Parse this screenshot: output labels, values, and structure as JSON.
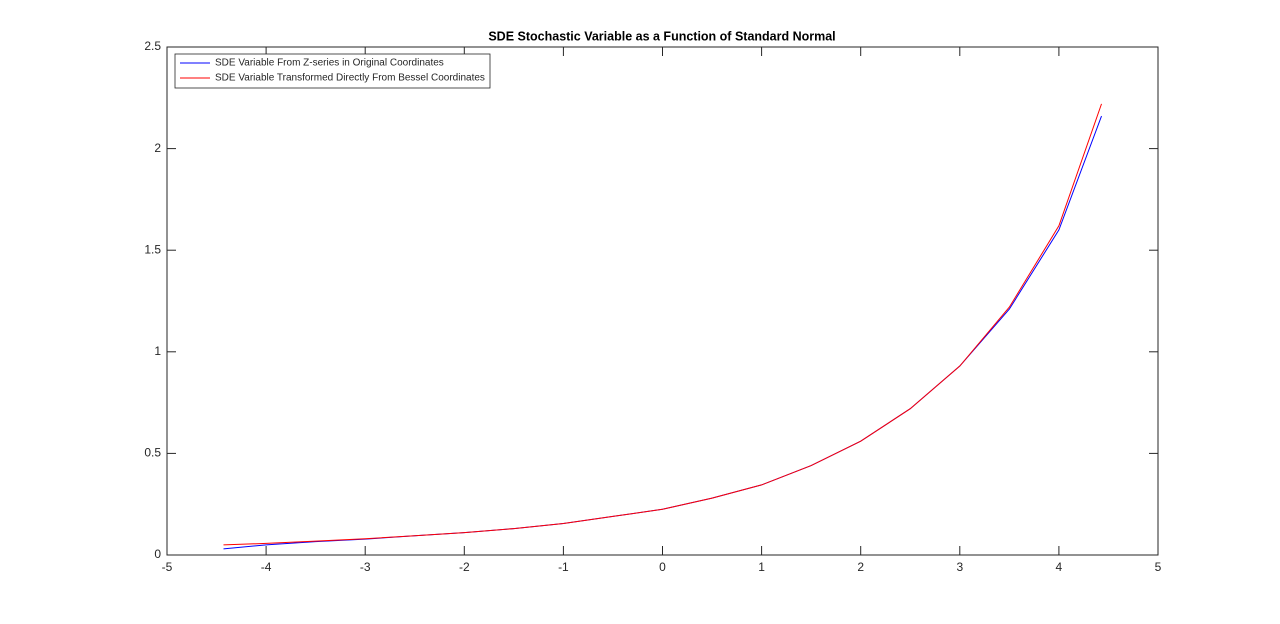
{
  "chart_data": {
    "type": "line",
    "title": "SDE Stochastic Variable as a Function of Standard Normal",
    "x": [
      -4.43,
      -4,
      -3.5,
      -3,
      -2.5,
      -2,
      -1.5,
      -1,
      -0.5,
      0,
      0.5,
      1,
      1.5,
      2,
      2.5,
      3,
      3.5,
      4,
      4.43
    ],
    "series": [
      {
        "name": "SDE Variable From Z-series in Original Coordinates",
        "color": "#0000ff",
        "values": [
          0.03,
          0.05,
          0.066,
          0.078,
          0.095,
          0.11,
          0.13,
          0.155,
          0.19,
          0.225,
          0.28,
          0.345,
          0.44,
          0.56,
          0.72,
          0.93,
          1.21,
          1.6,
          2.16
        ]
      },
      {
        "name": "SDE Variable Transformed Directly From Bessel Coordinates",
        "color": "#ff0000",
        "values": [
          0.05,
          0.057,
          0.068,
          0.08,
          0.095,
          0.11,
          0.13,
          0.155,
          0.19,
          0.225,
          0.28,
          0.345,
          0.44,
          0.56,
          0.72,
          0.93,
          1.22,
          1.62,
          2.22
        ]
      }
    ],
    "xlim": [
      -5,
      5
    ],
    "xticks": [
      -5,
      -4,
      -3,
      -2,
      -1,
      0,
      1,
      2,
      3,
      4,
      5
    ],
    "ylim": [
      0,
      2.5
    ],
    "yticks": [
      0,
      0.5,
      1,
      1.5,
      2,
      2.5
    ],
    "grid": false,
    "legend": "upper-left"
  }
}
